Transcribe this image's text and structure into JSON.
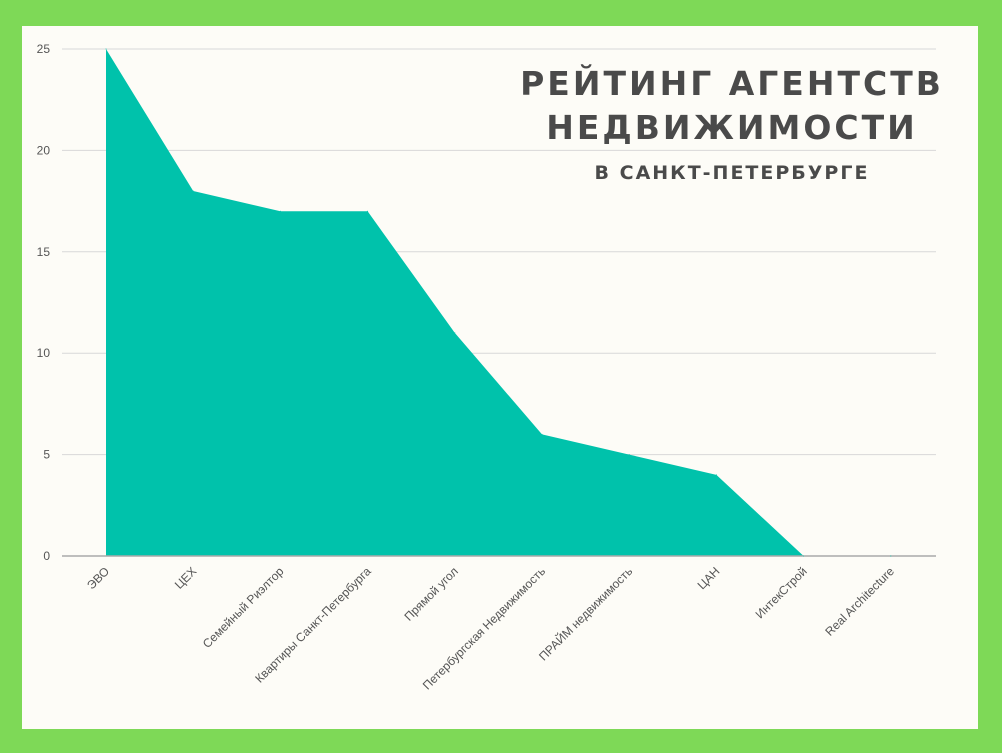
{
  "chart_data": {
    "type": "area",
    "title": "РЕЙТИНГ АГЕНТСТВ\nНЕДВИЖИМОСТИ",
    "subtitle": "В САНКТ-ПЕТЕРБУРГЕ",
    "categories": [
      "ЭВО",
      "ЦЕХ",
      "Семейный Риэлтор",
      "Квартиры Санкт-Петербурга",
      "Прямой угол",
      "Петербургская Недвижимость",
      "ПРАЙМ недвижимость",
      "ЦАН",
      "ИнтекСтрой",
      "Real Architecture"
    ],
    "values": [
      25,
      18,
      17,
      17,
      11,
      6,
      5,
      4,
      0,
      0
    ],
    "ylim": [
      0,
      25
    ],
    "yticks": [
      0,
      5,
      10,
      15,
      20,
      25
    ],
    "grid": true,
    "legend": "none",
    "colors": {
      "fill": "#00c2ab",
      "grid": "#d8d8d8",
      "axis": "#aaaaaa",
      "text": "#555555",
      "title": "#4a4a4a",
      "background": "#fdfcf7",
      "frame": "#7ed957"
    }
  }
}
